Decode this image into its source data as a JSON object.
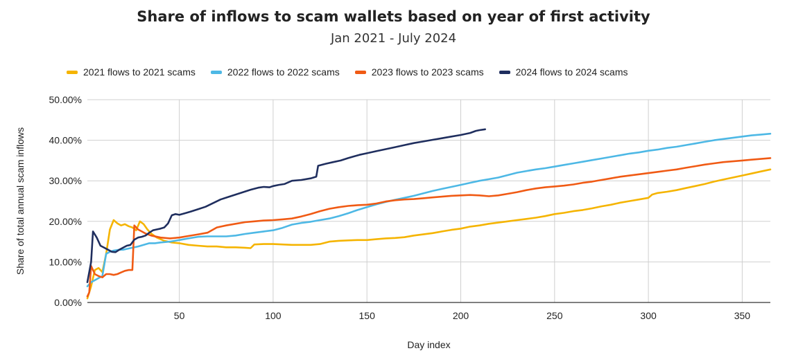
{
  "chart_data": {
    "type": "line",
    "title": "Share of inflows to scam wallets based on year of first activity",
    "subtitle": "Jan 2021 - July 2024",
    "xlabel": "Day index",
    "ylabel": "Share of total annual scam inflows",
    "xlim": [
      1,
      365
    ],
    "ylim": [
      0,
      50
    ],
    "xticks": [
      50,
      100,
      150,
      200,
      250,
      300,
      350
    ],
    "yticks": [
      0,
      10,
      20,
      30,
      40,
      50
    ],
    "ytick_labels": [
      "0.00%",
      "10.00%",
      "20.00%",
      "30.00%",
      "40.00%",
      "50.00%"
    ],
    "grid": true,
    "legend_position": "top",
    "series": [
      {
        "name": "2021 flows to 2021 scams",
        "color": "#F5B400",
        "points": [
          [
            1,
            1
          ],
          [
            3,
            4
          ],
          [
            5,
            8
          ],
          [
            7,
            8.5
          ],
          [
            9,
            7.5
          ],
          [
            11,
            12
          ],
          [
            13,
            18
          ],
          [
            15,
            20.3
          ],
          [
            17,
            19.5
          ],
          [
            19,
            19
          ],
          [
            21,
            19.3
          ],
          [
            23,
            18.8
          ],
          [
            25,
            18.5
          ],
          [
            27,
            17.8
          ],
          [
            29,
            20
          ],
          [
            31,
            19.3
          ],
          [
            33,
            18
          ],
          [
            35,
            17
          ],
          [
            38,
            16
          ],
          [
            42,
            15.2
          ],
          [
            46,
            14.8
          ],
          [
            50,
            14.6
          ],
          [
            55,
            14.2
          ],
          [
            60,
            14
          ],
          [
            65,
            13.8
          ],
          [
            70,
            13.8
          ],
          [
            75,
            13.6
          ],
          [
            80,
            13.6
          ],
          [
            85,
            13.5
          ],
          [
            88,
            13.4
          ],
          [
            90,
            14.3
          ],
          [
            95,
            14.4
          ],
          [
            100,
            14.4
          ],
          [
            105,
            14.3
          ],
          [
            110,
            14.2
          ],
          [
            115,
            14.2
          ],
          [
            120,
            14.2
          ],
          [
            125,
            14.4
          ],
          [
            130,
            15
          ],
          [
            135,
            15.2
          ],
          [
            140,
            15.3
          ],
          [
            145,
            15.4
          ],
          [
            150,
            15.4
          ],
          [
            155,
            15.6
          ],
          [
            160,
            15.8
          ],
          [
            165,
            15.9
          ],
          [
            170,
            16.1
          ],
          [
            175,
            16.5
          ],
          [
            180,
            16.8
          ],
          [
            185,
            17.1
          ],
          [
            190,
            17.5
          ],
          [
            195,
            17.9
          ],
          [
            200,
            18.2
          ],
          [
            205,
            18.7
          ],
          [
            210,
            19
          ],
          [
            215,
            19.4
          ],
          [
            220,
            19.7
          ],
          [
            225,
            20
          ],
          [
            230,
            20.3
          ],
          [
            235,
            20.6
          ],
          [
            240,
            20.9
          ],
          [
            245,
            21.3
          ],
          [
            250,
            21.8
          ],
          [
            255,
            22.1
          ],
          [
            260,
            22.5
          ],
          [
            265,
            22.8
          ],
          [
            270,
            23.2
          ],
          [
            275,
            23.7
          ],
          [
            280,
            24.1
          ],
          [
            285,
            24.6
          ],
          [
            290,
            25
          ],
          [
            295,
            25.4
          ],
          [
            300,
            25.8
          ],
          [
            302,
            26.6
          ],
          [
            305,
            27
          ],
          [
            310,
            27.3
          ],
          [
            315,
            27.7
          ],
          [
            320,
            28.2
          ],
          [
            325,
            28.7
          ],
          [
            330,
            29.2
          ],
          [
            335,
            29.8
          ],
          [
            340,
            30.3
          ],
          [
            345,
            30.8
          ],
          [
            350,
            31.3
          ],
          [
            355,
            31.8
          ],
          [
            360,
            32.3
          ],
          [
            365,
            32.8
          ]
        ]
      },
      {
        "name": "2022 flows to 2022 scams",
        "color": "#4DB8E5",
        "points": [
          [
            1,
            4
          ],
          [
            3,
            5
          ],
          [
            5,
            5.5
          ],
          [
            7,
            6
          ],
          [
            9,
            6.5
          ],
          [
            11,
            12
          ],
          [
            13,
            12.5
          ],
          [
            15,
            12.8
          ],
          [
            18,
            13
          ],
          [
            20,
            13
          ],
          [
            22,
            13.2
          ],
          [
            25,
            13.5
          ],
          [
            28,
            13.8
          ],
          [
            31,
            14.2
          ],
          [
            34,
            14.6
          ],
          [
            37,
            14.6
          ],
          [
            40,
            14.8
          ],
          [
            45,
            15
          ],
          [
            50,
            15.4
          ],
          [
            55,
            15.8
          ],
          [
            60,
            16.2
          ],
          [
            65,
            16.3
          ],
          [
            70,
            16.3
          ],
          [
            75,
            16.3
          ],
          [
            80,
            16.5
          ],
          [
            85,
            16.9
          ],
          [
            90,
            17.2
          ],
          [
            95,
            17.5
          ],
          [
            100,
            17.8
          ],
          [
            105,
            18.4
          ],
          [
            110,
            19.2
          ],
          [
            115,
            19.6
          ],
          [
            120,
            19.9
          ],
          [
            125,
            20.3
          ],
          [
            130,
            20.7
          ],
          [
            135,
            21.3
          ],
          [
            140,
            22
          ],
          [
            145,
            22.8
          ],
          [
            150,
            23.5
          ],
          [
            155,
            24.2
          ],
          [
            160,
            24.8
          ],
          [
            165,
            25.3
          ],
          [
            170,
            25.8
          ],
          [
            175,
            26.3
          ],
          [
            180,
            26.9
          ],
          [
            185,
            27.5
          ],
          [
            190,
            28
          ],
          [
            195,
            28.5
          ],
          [
            200,
            29
          ],
          [
            205,
            29.5
          ],
          [
            210,
            30
          ],
          [
            215,
            30.4
          ],
          [
            220,
            30.8
          ],
          [
            225,
            31.4
          ],
          [
            230,
            32
          ],
          [
            235,
            32.4
          ],
          [
            240,
            32.8
          ],
          [
            245,
            33.1
          ],
          [
            250,
            33.5
          ],
          [
            255,
            33.9
          ],
          [
            260,
            34.3
          ],
          [
            265,
            34.7
          ],
          [
            270,
            35.1
          ],
          [
            275,
            35.5
          ],
          [
            280,
            35.9
          ],
          [
            285,
            36.3
          ],
          [
            290,
            36.7
          ],
          [
            295,
            37
          ],
          [
            300,
            37.4
          ],
          [
            305,
            37.7
          ],
          [
            310,
            38.1
          ],
          [
            315,
            38.4
          ],
          [
            320,
            38.8
          ],
          [
            325,
            39.2
          ],
          [
            330,
            39.6
          ],
          [
            335,
            40
          ],
          [
            340,
            40.3
          ],
          [
            345,
            40.6
          ],
          [
            350,
            40.9
          ],
          [
            355,
            41.2
          ],
          [
            360,
            41.4
          ],
          [
            365,
            41.6
          ]
        ]
      },
      {
        "name": "2023 flows to 2023 scams",
        "color": "#F05A14",
        "points": [
          [
            1,
            1.5
          ],
          [
            2,
            2.5
          ],
          [
            3,
            9
          ],
          [
            5,
            7
          ],
          [
            7,
            6.5
          ],
          [
            9,
            6.2
          ],
          [
            11,
            7
          ],
          [
            13,
            7
          ],
          [
            15,
            6.8
          ],
          [
            17,
            7
          ],
          [
            19,
            7.4
          ],
          [
            21,
            7.8
          ],
          [
            23,
            8
          ],
          [
            25,
            8
          ],
          [
            26,
            19
          ],
          [
            28,
            18
          ],
          [
            30,
            17.5
          ],
          [
            32,
            17
          ],
          [
            35,
            16.5
          ],
          [
            40,
            16
          ],
          [
            45,
            15.8
          ],
          [
            50,
            16
          ],
          [
            55,
            16.4
          ],
          [
            60,
            16.8
          ],
          [
            65,
            17.2
          ],
          [
            70,
            18.5
          ],
          [
            75,
            19
          ],
          [
            80,
            19.4
          ],
          [
            85,
            19.8
          ],
          [
            90,
            20
          ],
          [
            95,
            20.2
          ],
          [
            100,
            20.3
          ],
          [
            105,
            20.5
          ],
          [
            110,
            20.7
          ],
          [
            115,
            21.2
          ],
          [
            120,
            21.8
          ],
          [
            125,
            22.5
          ],
          [
            130,
            23.1
          ],
          [
            135,
            23.5
          ],
          [
            140,
            23.8
          ],
          [
            145,
            24
          ],
          [
            150,
            24.1
          ],
          [
            155,
            24.4
          ],
          [
            160,
            24.9
          ],
          [
            165,
            25.2
          ],
          [
            170,
            25.4
          ],
          [
            175,
            25.5
          ],
          [
            180,
            25.7
          ],
          [
            185,
            25.9
          ],
          [
            190,
            26.1
          ],
          [
            195,
            26.3
          ],
          [
            200,
            26.4
          ],
          [
            205,
            26.5
          ],
          [
            210,
            26.4
          ],
          [
            215,
            26.2
          ],
          [
            220,
            26.4
          ],
          [
            225,
            26.8
          ],
          [
            230,
            27.2
          ],
          [
            235,
            27.7
          ],
          [
            240,
            28.1
          ],
          [
            245,
            28.4
          ],
          [
            250,
            28.6
          ],
          [
            255,
            28.8
          ],
          [
            260,
            29.1
          ],
          [
            265,
            29.5
          ],
          [
            270,
            29.8
          ],
          [
            275,
            30.2
          ],
          [
            280,
            30.6
          ],
          [
            285,
            31
          ],
          [
            290,
            31.3
          ],
          [
            295,
            31.6
          ],
          [
            300,
            31.9
          ],
          [
            305,
            32.2
          ],
          [
            310,
            32.5
          ],
          [
            315,
            32.8
          ],
          [
            320,
            33.2
          ],
          [
            325,
            33.6
          ],
          [
            330,
            34
          ],
          [
            335,
            34.3
          ],
          [
            340,
            34.6
          ],
          [
            345,
            34.8
          ],
          [
            350,
            35
          ],
          [
            355,
            35.2
          ],
          [
            360,
            35.4
          ],
          [
            365,
            35.6
          ]
        ]
      },
      {
        "name": "2024 flows to 2024 scams",
        "color": "#1F2E5E",
        "points": [
          [
            1,
            5
          ],
          [
            3,
            10
          ],
          [
            4,
            17.5
          ],
          [
            6,
            16
          ],
          [
            8,
            14
          ],
          [
            10,
            13.5
          ],
          [
            12,
            13
          ],
          [
            14,
            12.5
          ],
          [
            16,
            12.4
          ],
          [
            18,
            13
          ],
          [
            20,
            13.5
          ],
          [
            22,
            14
          ],
          [
            24,
            14.2
          ],
          [
            26,
            15.5
          ],
          [
            28,
            16
          ],
          [
            30,
            16.2
          ],
          [
            32,
            16.5
          ],
          [
            34,
            17.2
          ],
          [
            36,
            17.8
          ],
          [
            38,
            18
          ],
          [
            40,
            18.2
          ],
          [
            42,
            18.5
          ],
          [
            44,
            19.5
          ],
          [
            46,
            21.5
          ],
          [
            48,
            21.8
          ],
          [
            50,
            21.6
          ],
          [
            53,
            22
          ],
          [
            56,
            22.4
          ],
          [
            60,
            23
          ],
          [
            64,
            23.6
          ],
          [
            68,
            24.5
          ],
          [
            72,
            25.4
          ],
          [
            76,
            26
          ],
          [
            80,
            26.6
          ],
          [
            84,
            27.2
          ],
          [
            88,
            27.8
          ],
          [
            92,
            28.3
          ],
          [
            95,
            28.5
          ],
          [
            98,
            28.4
          ],
          [
            100,
            28.7
          ],
          [
            103,
            29
          ],
          [
            106,
            29.2
          ],
          [
            110,
            30
          ],
          [
            115,
            30.2
          ],
          [
            120,
            30.6
          ],
          [
            123,
            31
          ],
          [
            124,
            33.7
          ],
          [
            128,
            34.2
          ],
          [
            132,
            34.6
          ],
          [
            136,
            35
          ],
          [
            140,
            35.6
          ],
          [
            143,
            36
          ],
          [
            146,
            36.4
          ],
          [
            150,
            36.8
          ],
          [
            155,
            37.3
          ],
          [
            160,
            37.8
          ],
          [
            165,
            38.3
          ],
          [
            170,
            38.8
          ],
          [
            175,
            39.3
          ],
          [
            180,
            39.7
          ],
          [
            185,
            40.1
          ],
          [
            190,
            40.5
          ],
          [
            195,
            40.9
          ],
          [
            200,
            41.3
          ],
          [
            205,
            41.8
          ],
          [
            208,
            42.3
          ],
          [
            210,
            42.5
          ],
          [
            213,
            42.7
          ]
        ]
      }
    ]
  }
}
